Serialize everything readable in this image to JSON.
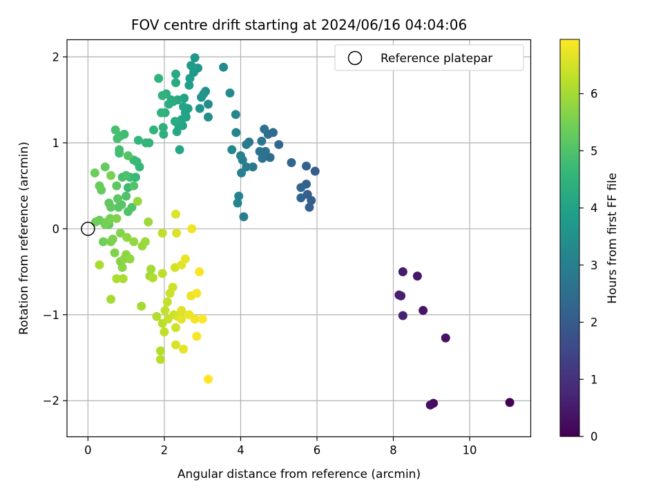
{
  "chart_data": {
    "type": "scatter",
    "title": "FOV centre drift starting at 2024/06/16 04:04:06",
    "xlabel": "Angular distance from reference (arcmin)",
    "ylabel": "Rotation from reference (arcmin)",
    "xlim": [
      -0.55,
      11.6
    ],
    "ylim": [
      -2.42,
      2.2
    ],
    "xticks": [
      0,
      2,
      4,
      6,
      8,
      10
    ],
    "xtick_labels": [
      "0",
      "2",
      "4",
      "6",
      "8",
      "10"
    ],
    "yticks": [
      -2,
      -1,
      0,
      1,
      2
    ],
    "ytick_labels": [
      "−2",
      "−1",
      "0",
      "1",
      "2"
    ],
    "grid": true,
    "legend": {
      "position": "top-right",
      "entries": [
        {
          "label": "Reference platepar",
          "marker": "open-circle"
        }
      ]
    },
    "reference_point": {
      "x": 0,
      "y": 0
    },
    "colorbar": {
      "label": "Hours from first FF file",
      "colormap": "viridis",
      "range": [
        0,
        6.95
      ],
      "ticks": [
        0,
        1,
        2,
        3,
        4,
        5,
        6
      ],
      "tick_labels": [
        "0",
        "1",
        "2",
        "3",
        "4",
        "5",
        "6"
      ],
      "stops": [
        "#440154",
        "#482878",
        "#3e4989",
        "#31688e",
        "#26828e",
        "#1f9e89",
        "#35b779",
        "#6ece58",
        "#b5de2b",
        "#fde725"
      ]
    },
    "points": [
      [
        11.05,
        -2.02,
        0.05
      ],
      [
        9.05,
        -2.03,
        0.2
      ],
      [
        8.97,
        -2.05,
        0.25
      ],
      [
        9.37,
        -1.27,
        0.35
      ],
      [
        8.78,
        -0.95,
        0.4
      ],
      [
        8.63,
        -0.55,
        0.45
      ],
      [
        8.25,
        -0.5,
        0.5
      ],
      [
        8.2,
        -0.78,
        0.55
      ],
      [
        8.15,
        -0.77,
        0.6
      ],
      [
        8.25,
        -1.01,
        0.65
      ],
      [
        5.95,
        0.67,
        2.0
      ],
      [
        5.85,
        0.33,
        2.05
      ],
      [
        5.8,
        0.25,
        2.1
      ],
      [
        5.75,
        0.4,
        2.12
      ],
      [
        5.72,
        0.52,
        2.15
      ],
      [
        5.72,
        0.73,
        2.2
      ],
      [
        5.58,
        0.36,
        2.25
      ],
      [
        5.58,
        0.48,
        2.27
      ],
      [
        5.33,
        0.77,
        2.3
      ],
      [
        5.0,
        0.98,
        2.35
      ],
      [
        4.85,
        1.12,
        2.4
      ],
      [
        4.77,
        0.83,
        2.45
      ],
      [
        4.72,
        1.1,
        2.5
      ],
      [
        4.65,
        0.9,
        2.55
      ],
      [
        4.62,
        1.16,
        2.6
      ],
      [
        4.57,
        0.82,
        2.62
      ],
      [
        4.5,
        0.9,
        2.65
      ],
      [
        4.55,
        1.02,
        2.7
      ],
      [
        4.32,
        0.72,
        2.75
      ],
      [
        4.22,
        1.01,
        2.8
      ],
      [
        4.15,
        0.98,
        2.85
      ],
      [
        4.15,
        0.72,
        2.9
      ],
      [
        4.08,
        0.14,
        2.95
      ],
      [
        4.05,
        0.8,
        3.0
      ],
      [
        4.02,
        0.65,
        3.02
      ],
      [
        4.0,
        0.85,
        3.05
      ],
      [
        3.95,
        0.38,
        3.1
      ],
      [
        3.92,
        0.3,
        3.15
      ],
      [
        3.88,
        1.12,
        3.18
      ],
      [
        3.87,
        1.33,
        3.2
      ],
      [
        3.77,
        0.92,
        3.25
      ],
      [
        3.72,
        1.58,
        3.3
      ],
      [
        3.55,
        1.88,
        3.35
      ],
      [
        3.15,
        1.45,
        3.4
      ],
      [
        3.15,
        1.3,
        3.45
      ],
      [
        3.08,
        1.6,
        3.5
      ],
      [
        3.03,
        1.57,
        3.55
      ],
      [
        2.97,
        1.53,
        3.6
      ],
      [
        2.93,
        1.4,
        3.62
      ],
      [
        2.88,
        1.87,
        3.65
      ],
      [
        2.8,
        1.99,
        3.7
      ],
      [
        2.77,
        1.82,
        3.75
      ],
      [
        2.75,
        1.88,
        3.8
      ],
      [
        2.7,
        1.9,
        3.82
      ],
      [
        2.67,
        1.75,
        3.85
      ],
      [
        2.65,
        1.67,
        3.9
      ],
      [
        2.62,
        1.4,
        3.92
      ],
      [
        2.57,
        1.3,
        3.95
      ],
      [
        2.55,
        1.35,
        3.97
      ],
      [
        2.52,
        1.52,
        4.0
      ],
      [
        2.5,
        1.42,
        4.02
      ],
      [
        2.48,
        1.2,
        4.05
      ],
      [
        2.45,
        1.27,
        4.07
      ],
      [
        2.4,
        0.92,
        4.1
      ],
      [
        2.38,
        1.2,
        4.12
      ],
      [
        2.35,
        1.5,
        4.15
      ],
      [
        2.33,
        1.13,
        4.18
      ],
      [
        2.3,
        1.8,
        4.2
      ],
      [
        2.3,
        1.7,
        4.22
      ],
      [
        2.28,
        1.25,
        4.25
      ],
      [
        2.23,
        1.48,
        4.27
      ],
      [
        2.18,
        1.5,
        4.3
      ],
      [
        2.12,
        1.45,
        4.32
      ],
      [
        2.05,
        1.57,
        4.35
      ],
      [
        2.02,
        1.35,
        4.37
      ],
      [
        1.98,
        1.1,
        4.4
      ],
      [
        1.97,
        1.18,
        4.42
      ],
      [
        1.95,
        1.55,
        4.45
      ],
      [
        1.92,
        1.35,
        4.47
      ],
      [
        1.85,
        1.75,
        4.5
      ],
      [
        1.72,
        1.15,
        4.52
      ],
      [
        1.6,
        1.0,
        4.55
      ],
      [
        1.52,
        1.0,
        4.57
      ],
      [
        1.32,
        1.03,
        4.6
      ],
      [
        1.35,
        0.72,
        4.62
      ],
      [
        1.28,
        0.78,
        4.65
      ],
      [
        1.25,
        0.6,
        4.67
      ],
      [
        1.2,
        0.8,
        4.7
      ],
      [
        1.1,
        0.6,
        4.72
      ],
      [
        1.05,
        0.48,
        4.75
      ],
      [
        0.95,
        1.1,
        4.77
      ],
      [
        0.85,
        1.08,
        4.8
      ],
      [
        0.82,
        0.92,
        4.82
      ],
      [
        0.82,
        0.88,
        4.85
      ],
      [
        0.77,
        1.05,
        4.87
      ],
      [
        0.72,
        1.15,
        4.9
      ],
      [
        0.9,
        0.6,
        4.92
      ],
      [
        1.0,
        0.62,
        4.95
      ],
      [
        1.0,
        0.38,
        4.97
      ],
      [
        1.05,
        0.2,
        5.0
      ],
      [
        1.15,
        0.25,
        5.02
      ],
      [
        1.2,
        0.5,
        5.05
      ],
      [
        1.05,
        0.85,
        5.07
      ],
      [
        0.88,
        0.28,
        5.1
      ],
      [
        0.8,
        0.25,
        5.12
      ],
      [
        0.75,
        0.5,
        5.15
      ],
      [
        0.78,
        0.35,
        5.17
      ],
      [
        0.6,
        0.25,
        5.2
      ],
      [
        0.55,
        0.3,
        5.22
      ],
      [
        0.55,
        0.05,
        5.25
      ],
      [
        0.45,
        0.72,
        5.27
      ],
      [
        0.35,
        0.45,
        5.3
      ],
      [
        0.3,
        0.5,
        5.32
      ],
      [
        0.3,
        0.1,
        5.35
      ],
      [
        0.18,
        0.65,
        5.37
      ],
      [
        0.2,
        0.08,
        5.4
      ],
      [
        0.4,
        -0.15,
        5.42
      ],
      [
        0.45,
        0.05,
        5.45
      ],
      [
        0.5,
        0.08,
        5.47
      ],
      [
        0.58,
        0.12,
        5.5
      ],
      [
        0.6,
        0.62,
        5.52
      ],
      [
        0.6,
        -0.15,
        5.55
      ],
      [
        0.65,
        -0.12,
        5.57
      ],
      [
        0.7,
        -0.28,
        5.6
      ],
      [
        0.75,
        0.12,
        5.62
      ],
      [
        0.85,
        -0.05,
        5.65
      ],
      [
        0.85,
        -0.38,
        5.67
      ],
      [
        0.9,
        -0.45,
        5.7
      ],
      [
        0.95,
        -0.35,
        5.72
      ],
      [
        1.0,
        -0.3,
        5.75
      ],
      [
        1.02,
        -0.1,
        5.77
      ],
      [
        1.1,
        -0.35,
        5.8
      ],
      [
        1.2,
        -0.15,
        5.82
      ],
      [
        1.3,
        0.32,
        5.85
      ],
      [
        1.42,
        -0.2,
        5.87
      ],
      [
        1.5,
        -0.15,
        5.9
      ],
      [
        1.58,
        0.08,
        5.92
      ],
      [
        1.62,
        -0.55,
        5.95
      ],
      [
        1.65,
        -0.47,
        5.97
      ],
      [
        1.4,
        -0.9,
        6.0
      ],
      [
        0.6,
        -0.82,
        6.02
      ],
      [
        0.3,
        -0.42,
        6.05
      ],
      [
        0.92,
        -0.58,
        6.07
      ],
      [
        0.75,
        -0.58,
        6.1
      ],
      [
        1.7,
        -0.57,
        6.12
      ],
      [
        1.8,
        -1.02,
        6.15
      ],
      [
        1.9,
        -1.42,
        6.17
      ],
      [
        1.9,
        -1.52,
        6.2
      ],
      [
        1.95,
        -1.1,
        6.22
      ],
      [
        1.95,
        -0.52,
        6.25
      ],
      [
        1.95,
        -0.05,
        6.27
      ],
      [
        2.0,
        -1.2,
        6.3
      ],
      [
        2.02,
        -0.95,
        6.32
      ],
      [
        2.08,
        -0.85,
        6.35
      ],
      [
        2.1,
        -1.05,
        6.37
      ],
      [
        2.15,
        -0.75,
        6.4
      ],
      [
        2.22,
        -0.68,
        6.42
      ],
      [
        2.25,
        -1.0,
        6.45
      ],
      [
        2.3,
        -1.15,
        6.47
      ],
      [
        2.28,
        -0.45,
        6.5
      ],
      [
        2.35,
        -1.02,
        6.52
      ],
      [
        2.3,
        -1.35,
        6.55
      ],
      [
        2.32,
        -0.05,
        6.57
      ],
      [
        2.3,
        0.17,
        6.6
      ],
      [
        2.45,
        -0.95,
        6.62
      ],
      [
        2.45,
        -0.42,
        6.65
      ],
      [
        2.45,
        -1.05,
        6.67
      ],
      [
        2.5,
        -1.4,
        6.7
      ],
      [
        2.55,
        -0.35,
        6.72
      ],
      [
        2.65,
        -1.0,
        6.75
      ],
      [
        2.7,
        -0.78,
        6.77
      ],
      [
        2.72,
        0.0,
        6.8
      ],
      [
        2.8,
        -1.05,
        6.82
      ],
      [
        2.85,
        -0.75,
        6.85
      ],
      [
        2.85,
        -1.25,
        6.87
      ],
      [
        2.92,
        -0.5,
        6.9
      ],
      [
        3.0,
        -1.05,
        6.92
      ],
      [
        3.15,
        -1.75,
        6.95
      ]
    ]
  }
}
